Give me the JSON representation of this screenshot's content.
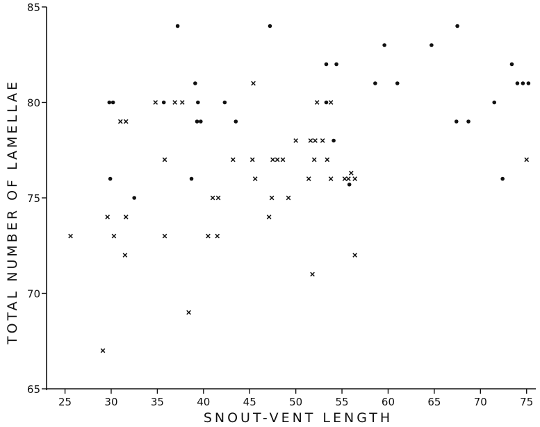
{
  "chart_data": {
    "type": "scatter",
    "title": "",
    "xlabel": "SNOUT-VENT LENGTH",
    "ylabel": "TOTAL NUMBER OF LAMELLAE",
    "xlim": [
      23,
      76
    ],
    "ylim": [
      65,
      85
    ],
    "x_ticks": [
      25,
      30,
      35,
      40,
      45,
      50,
      55,
      60,
      65,
      70,
      75
    ],
    "y_ticks": [
      65,
      70,
      75,
      80,
      85
    ],
    "grid": false,
    "series": [
      {
        "marker": "dot",
        "points": [
          [
            29.8,
            80
          ],
          [
            30.2,
            80
          ],
          [
            29.9,
            76
          ],
          [
            32.5,
            75
          ],
          [
            35.7,
            80
          ],
          [
            37.2,
            84
          ],
          [
            39.1,
            81
          ],
          [
            39.4,
            80
          ],
          [
            39.3,
            79
          ],
          [
            39.7,
            79
          ],
          [
            38.7,
            76
          ],
          [
            42.3,
            80
          ],
          [
            43.5,
            79
          ],
          [
            47.2,
            84
          ],
          [
            53.3,
            82
          ],
          [
            54.4,
            82
          ],
          [
            53.3,
            80
          ],
          [
            54.1,
            78
          ],
          [
            55.8,
            75.7
          ],
          [
            58.6,
            81
          ],
          [
            59.6,
            83
          ],
          [
            61.0,
            81
          ],
          [
            64.7,
            83
          ],
          [
            67.5,
            84
          ],
          [
            67.4,
            79
          ],
          [
            68.7,
            79
          ],
          [
            71.5,
            80
          ],
          [
            72.4,
            76
          ],
          [
            73.4,
            82
          ],
          [
            74.0,
            81
          ],
          [
            74.6,
            81
          ],
          [
            75.2,
            81
          ]
        ]
      },
      {
        "marker": "cross",
        "points": [
          [
            25.6,
            73
          ],
          [
            29.1,
            67
          ],
          [
            29.6,
            74
          ],
          [
            30.3,
            73
          ],
          [
            31.0,
            79
          ],
          [
            31.6,
            79
          ],
          [
            31.6,
            74
          ],
          [
            31.5,
            72
          ],
          [
            34.8,
            80
          ],
          [
            35.8,
            77
          ],
          [
            35.8,
            73
          ],
          [
            36.9,
            80
          ],
          [
            37.7,
            80
          ],
          [
            38.4,
            69
          ],
          [
            40.5,
            73
          ],
          [
            41.0,
            75
          ],
          [
            41.6,
            75
          ],
          [
            41.5,
            73
          ],
          [
            43.2,
            77
          ],
          [
            45.4,
            81
          ],
          [
            45.3,
            77
          ],
          [
            45.6,
            76
          ],
          [
            47.1,
            74
          ],
          [
            47.5,
            77
          ],
          [
            47.4,
            75
          ],
          [
            48.0,
            77
          ],
          [
            48.6,
            77
          ],
          [
            49.2,
            75
          ],
          [
            50.0,
            78
          ],
          [
            51.4,
            76
          ],
          [
            51.6,
            78
          ],
          [
            52.1,
            78
          ],
          [
            52.0,
            77
          ],
          [
            51.8,
            71
          ],
          [
            52.3,
            80
          ],
          [
            52.9,
            78
          ],
          [
            53.4,
            77
          ],
          [
            53.8,
            80
          ],
          [
            53.8,
            76
          ],
          [
            55.3,
            76
          ],
          [
            55.7,
            76
          ],
          [
            56.0,
            76.3
          ],
          [
            56.4,
            76
          ],
          [
            56.4,
            72
          ],
          [
            75.0,
            77
          ]
        ]
      }
    ]
  }
}
